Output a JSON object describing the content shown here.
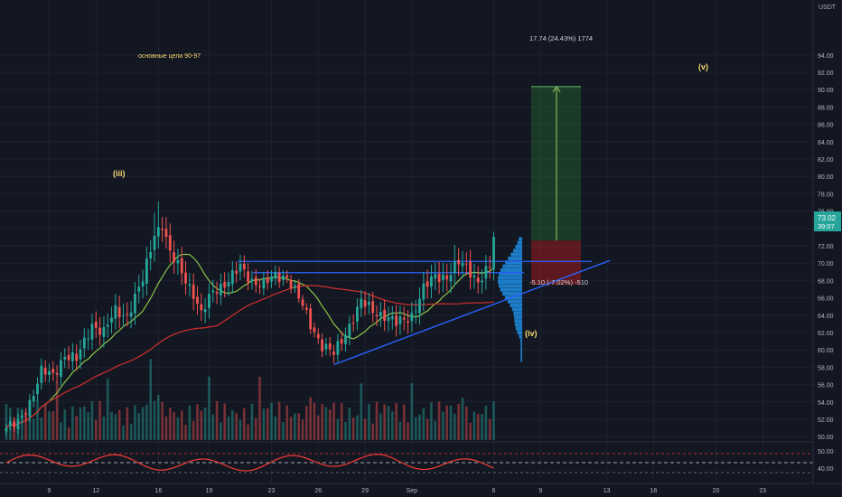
{
  "chart_data": {
    "type": "candlestick",
    "currency": "USDT",
    "last_price": "73.02",
    "countdown": "39:07",
    "y_ticks": [
      "94.00",
      "92.00",
      "90.00",
      "88.00",
      "86.00",
      "84.00",
      "82.00",
      "80.00",
      "78.00",
      "76.00",
      "74.00",
      "72.00",
      "70.00",
      "68.00",
      "66.00",
      "64.00",
      "62.00",
      "60.00",
      "58.00",
      "56.00",
      "54.00",
      "52.00",
      "50.00"
    ],
    "ylim": [
      49.5,
      95.5
    ],
    "x_ticks": [
      {
        "label": "9",
        "bar": 11
      },
      {
        "label": "12",
        "bar": 23
      },
      {
        "label": "16",
        "bar": 39
      },
      {
        "label": "19",
        "bar": 52
      },
      {
        "label": "23",
        "bar": 68
      },
      {
        "label": "26",
        "bar": 80
      },
      {
        "label": "29",
        "bar": 92
      },
      {
        "label": "Sep",
        "bar": 104
      },
      {
        "label": "6",
        "bar": 125
      },
      {
        "label": "9",
        "bar": 137
      },
      {
        "label": "13",
        "bar": 154
      },
      {
        "label": "16",
        "bar": 166
      },
      {
        "label": "20",
        "bar": 182
      },
      {
        "label": "23",
        "bar": 194
      }
    ],
    "oscillator_ticks": [
      "50.00",
      "40.00"
    ],
    "annotations": {
      "targets_note": "основные цели 90-97",
      "wave_iii": "(iii)",
      "wave_iv": "(iv)",
      "wave_v": "(v)",
      "profit_label": "17.74 (24.43%) 1774",
      "loss_label": "-5.10 (-7.02%) -510"
    },
    "position": {
      "entry": 72.6,
      "target": 90.34,
      "stop": 67.5
    },
    "horizontal_lines": [
      70.2,
      68.9
    ],
    "support_line": {
      "from": [
        84,
        58.3
      ],
      "to": [
        154,
        70.3
      ]
    },
    "colors": {
      "up": "#26a69a",
      "down": "#ef5350",
      "ma_fast": "#8bc34a",
      "ma_slow": "#d32f2f",
      "trend": "#2962ff",
      "annotation": "#f5d76e",
      "volume_profile": "#2196f3",
      "profit_zone": "#2e7d32",
      "loss_zone": "#b71c1c",
      "oscillator": "#e53935"
    }
  }
}
